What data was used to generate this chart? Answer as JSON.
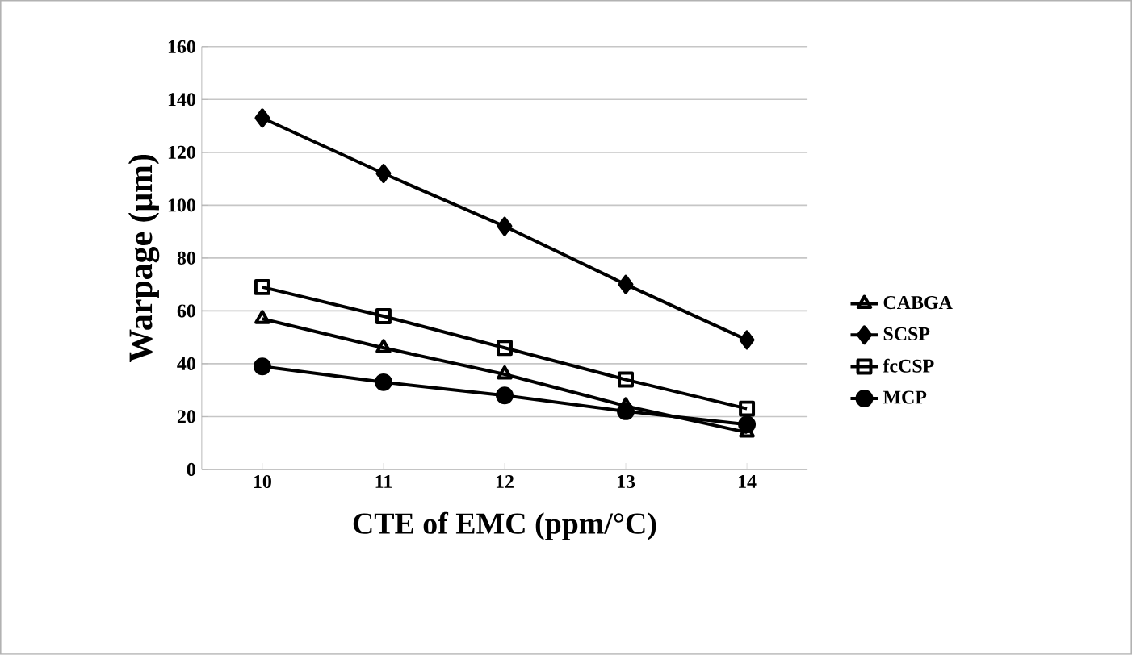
{
  "chart_data": {
    "type": "line",
    "xlabel": "CTE of EMC (ppm/°C)",
    "ylabel": "Warpage (μm)",
    "categories": [
      "10",
      "11",
      "12",
      "13",
      "14"
    ],
    "series": [
      {
        "name": "CABGA",
        "color": "#000000",
        "marker": "triangle",
        "values": [
          57,
          46,
          36,
          24,
          14
        ]
      },
      {
        "name": "SCSP",
        "color": "#000000",
        "marker": "diamond",
        "values": [
          133,
          112,
          92,
          70,
          49
        ]
      },
      {
        "name": "fcCSP",
        "color": "#000000",
        "marker": "square",
        "values": [
          69,
          58,
          46,
          34,
          23
        ]
      },
      {
        "name": "MCP",
        "color": "#000000",
        "marker": "circle",
        "values": [
          39,
          33,
          28,
          22,
          17
        ]
      }
    ],
    "ylim": [
      0,
      160
    ],
    "yticks": [
      0,
      20,
      40,
      60,
      80,
      100,
      120,
      140,
      160
    ],
    "grid": "y",
    "legend": "right",
    "line_style": "solid"
  }
}
